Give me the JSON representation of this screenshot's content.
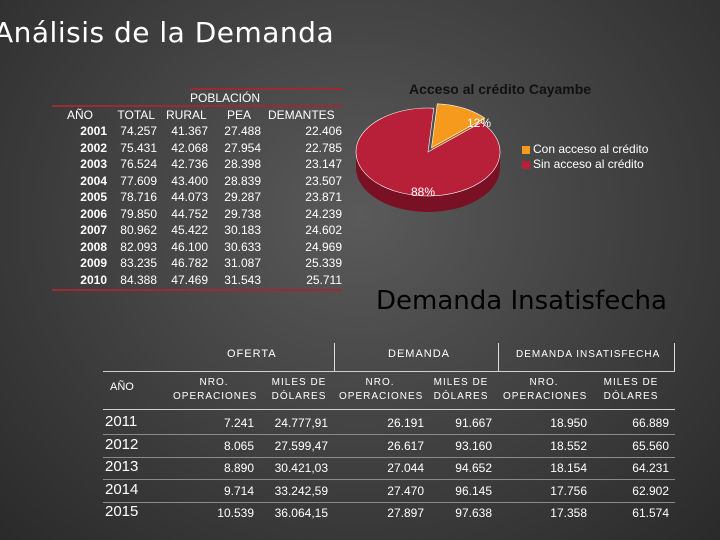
{
  "title": "Análisis de la Demanda",
  "population_table": {
    "group_header": "POBLACIÓN",
    "headers": [
      "AÑO",
      "TOTAL",
      "RURAL",
      "PEA",
      "DEMANTES"
    ],
    "rows": [
      [
        "2001",
        "74.257",
        "41.367",
        "27.488",
        "22.406"
      ],
      [
        "2002",
        "75.431",
        "42.068",
        "27.954",
        "22.785"
      ],
      [
        "2003",
        "76.524",
        "42.736",
        "28.398",
        "23.147"
      ],
      [
        "2004",
        "77.609",
        "43.400",
        "28.839",
        "23.507"
      ],
      [
        "2005",
        "78.716",
        "44.073",
        "29.287",
        "23.871"
      ],
      [
        "2006",
        "79.850",
        "44.752",
        "29.738",
        "24.239"
      ],
      [
        "2007",
        "80.962",
        "45.422",
        "30.183",
        "24.602"
      ],
      [
        "2008",
        "82.093",
        "46.100",
        "30.633",
        "24.969"
      ],
      [
        "2009",
        "83.235",
        "46.782",
        "31.087",
        "25.339"
      ],
      [
        "2010",
        "84.388",
        "47.469",
        "31.543",
        "25.711"
      ]
    ]
  },
  "chart_data": {
    "type": "pie",
    "title": "Acceso al crédito Cayambe",
    "categories": [
      "Con acceso al crédito",
      "Sin acceso al crédito"
    ],
    "values": [
      12,
      88
    ],
    "labels": [
      "12%",
      "88%"
    ],
    "colors": [
      "#f59a1c",
      "#b8203a"
    ],
    "legend_position": "right"
  },
  "subtitle": "Demanda Insatisfecha",
  "demand_table": {
    "group_headers": [
      "OFERTA",
      "DEMANDA",
      "DEMANDA INSATISFECHA"
    ],
    "year_header": "AÑO",
    "sub_headers": [
      "NRO. OPERACIONES",
      "MILES DE DÓLARES",
      "NRO. OPERACIONES",
      "MILES DE DÓLARES",
      "NRO. OPERACIONES",
      "MILES DE DÓLARES"
    ],
    "rows": [
      [
        "2011",
        "7.241",
        "24.777,91",
        "26.191",
        "91.667",
        "18.950",
        "66.889"
      ],
      [
        "2012",
        "8.065",
        "27.599,47",
        "26.617",
        "93.160",
        "18.552",
        "65.560"
      ],
      [
        "2013",
        "8.890",
        "30.421,03",
        "27.044",
        "94.652",
        "18.154",
        "64.231"
      ],
      [
        "2014",
        "9.714",
        "33.242,59",
        "27.470",
        "96.145",
        "17.756",
        "62.902"
      ],
      [
        "2015",
        "10.539",
        "36.064,15",
        "27.897",
        "97.638",
        "17.358",
        "61.574"
      ]
    ]
  }
}
